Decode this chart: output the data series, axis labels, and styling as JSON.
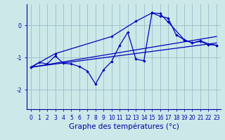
{
  "xlabel": "Graphe des températures (°c)",
  "background_color": "#cce8e8",
  "line_color": "#0000bb",
  "grid_color": "#99bbcc",
  "axis_color": "#0000aa",
  "text_color": "#0000aa",
  "xlim": [
    -0.5,
    23.5
  ],
  "ylim": [
    -2.6,
    0.65
  ],
  "yticks": [
    0,
    -1,
    -2
  ],
  "xticks": [
    0,
    1,
    2,
    3,
    4,
    5,
    6,
    7,
    8,
    9,
    10,
    11,
    12,
    13,
    14,
    15,
    16,
    17,
    18,
    19,
    20,
    21,
    22,
    23
  ],
  "curve_main_x": [
    0,
    1,
    2,
    3,
    4,
    5,
    6,
    7,
    8,
    9,
    10,
    11,
    12,
    13,
    14,
    15,
    16,
    17,
    18,
    19,
    20,
    21,
    22,
    23
  ],
  "curve_main_y": [
    -1.3,
    -1.15,
    -1.2,
    -0.95,
    -1.18,
    -1.2,
    -1.28,
    -1.42,
    -1.82,
    -1.38,
    -1.12,
    -0.62,
    -0.22,
    -1.05,
    -1.1,
    0.38,
    0.28,
    0.22,
    -0.3,
    -0.45,
    -0.55,
    -0.5,
    -0.6,
    -0.62
  ],
  "curve_upper_x": [
    0,
    3,
    10,
    13,
    15,
    16,
    17,
    19,
    20,
    21,
    22,
    23
  ],
  "curve_upper_y": [
    -1.3,
    -0.88,
    -0.35,
    0.12,
    0.38,
    0.36,
    0.1,
    -0.45,
    -0.55,
    -0.48,
    -0.58,
    -0.62
  ],
  "line1_x": [
    0,
    23
  ],
  "line1_y": [
    -1.3,
    -0.35
  ],
  "line2_x": [
    0,
    23
  ],
  "line2_y": [
    -1.3,
    -0.55
  ],
  "xlabel_fontsize": 7.5,
  "tick_fontsize": 5.5
}
